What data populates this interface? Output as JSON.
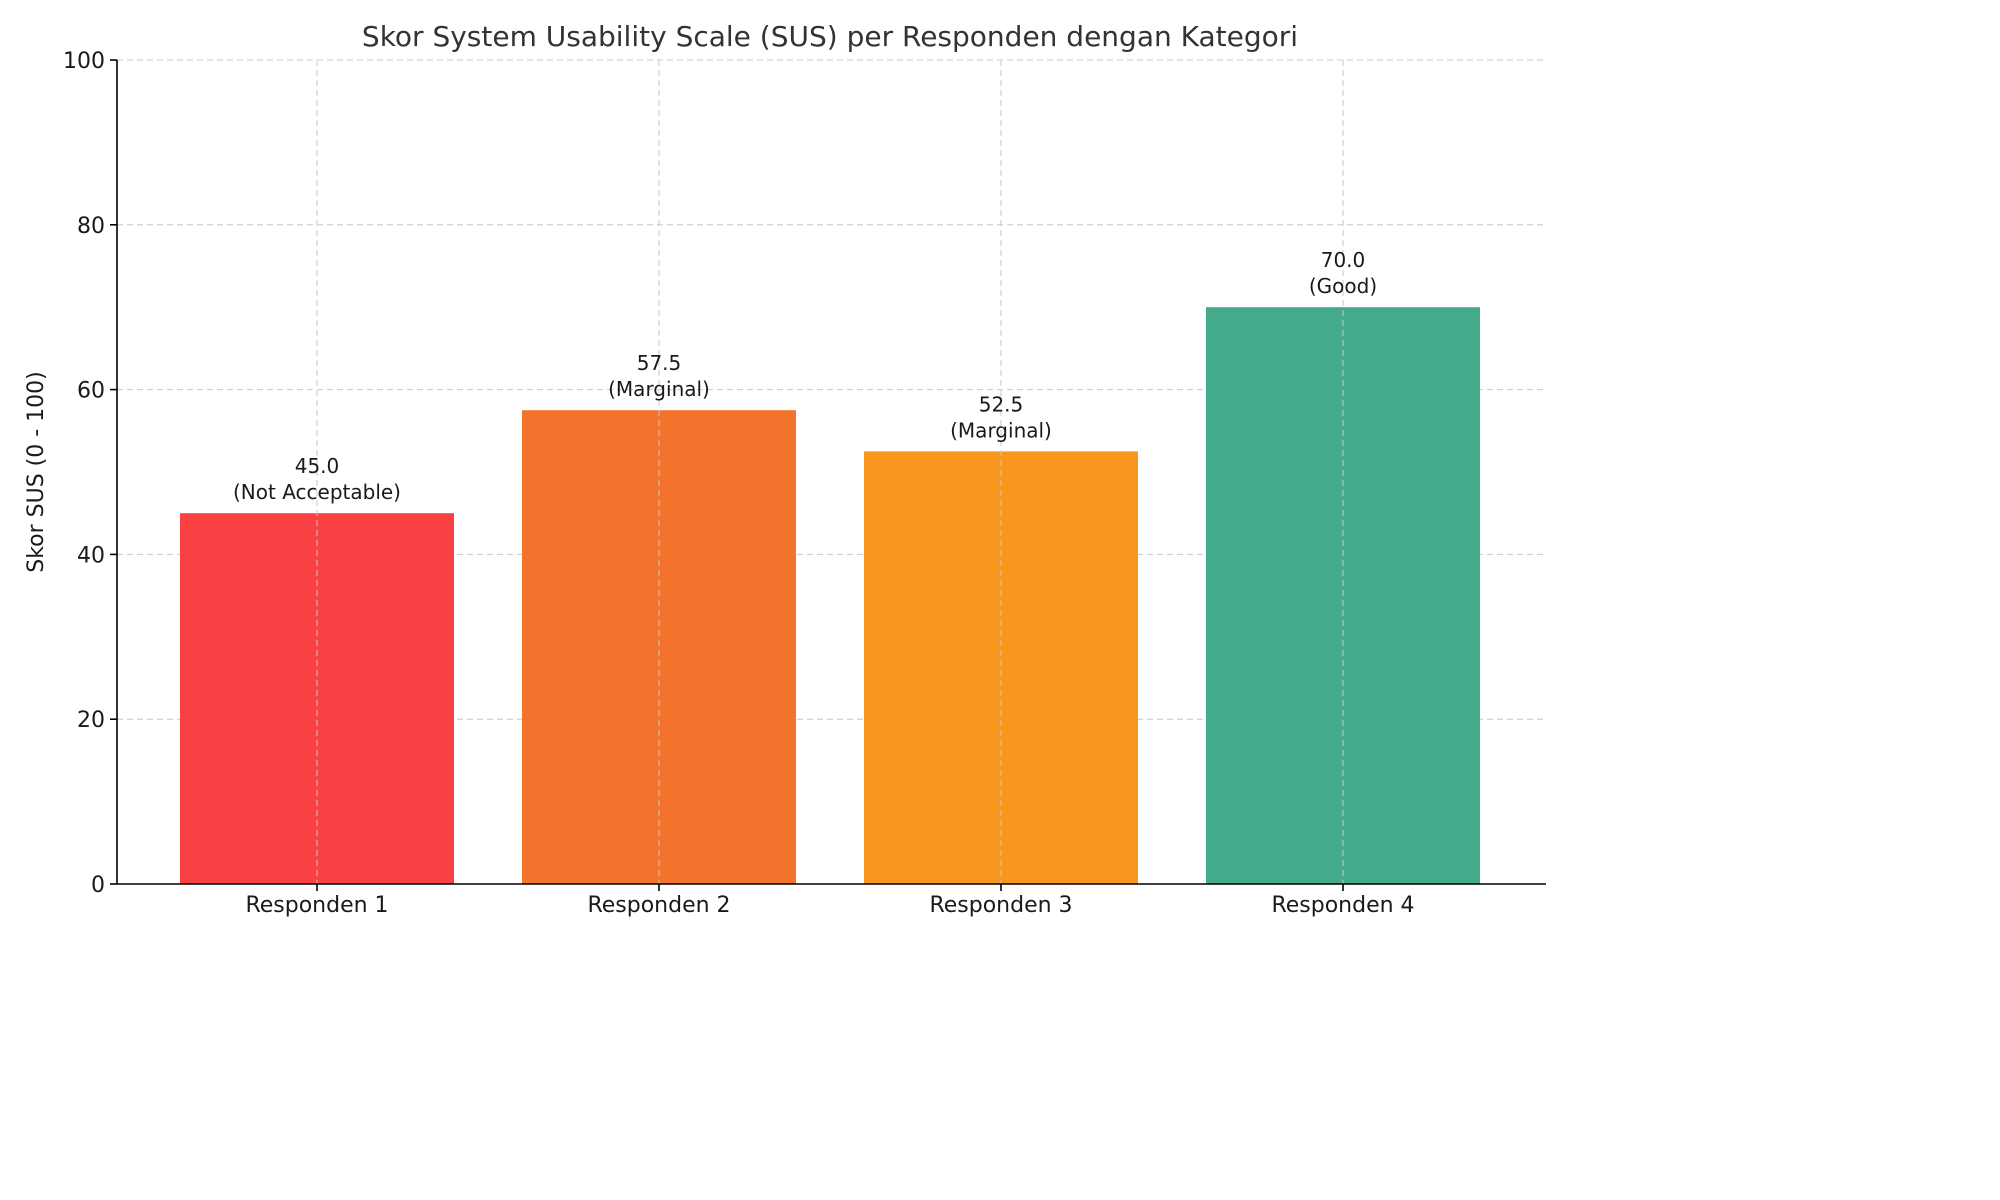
{
  "chart_data": {
    "type": "bar",
    "title": "Skor System Usability Scale (SUS) per Responden dengan Kategori",
    "xlabel": "",
    "ylabel": "Skor SUS (0 - 100)",
    "ylim": [
      0,
      100
    ],
    "yticks": [
      0,
      20,
      40,
      60,
      80,
      100
    ],
    "grid": true,
    "categories": [
      "Responden 1",
      "Responden 2",
      "Responden 3",
      "Responden 4"
    ],
    "values": [
      45.0,
      57.5,
      52.5,
      70.0
    ],
    "value_labels": [
      "45.0",
      "57.5",
      "52.5",
      "70.0"
    ],
    "category_labels": [
      "(Not Acceptable)",
      "(Marginal)",
      "(Marginal)",
      "(Good)"
    ],
    "colors": [
      "#f94144",
      "#f3722c",
      "#f8961e",
      "#43aa8b"
    ]
  }
}
